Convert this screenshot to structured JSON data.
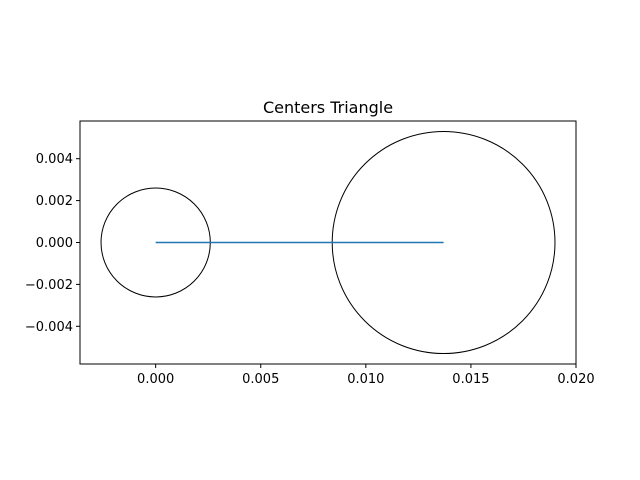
{
  "chart_data": {
    "type": "line",
    "title": "Centers Triangle",
    "xlabel": "",
    "ylabel": "",
    "xlim": [
      -0.0036,
      0.02
    ],
    "ylim": [
      -0.0058,
      0.0058
    ],
    "x_ticks": [
      0.0,
      0.005,
      0.01,
      0.015,
      0.02
    ],
    "x_tick_labels": [
      "0.000",
      "0.005",
      "0.010",
      "0.015",
      "0.020"
    ],
    "y_ticks": [
      -0.004,
      -0.002,
      0.0,
      0.002,
      0.004
    ],
    "y_tick_labels": [
      "−0.004",
      "−0.002",
      "0.000",
      "0.002",
      "0.004"
    ],
    "grid": false,
    "series": [
      {
        "x": [
          0.0,
          0.0137,
          0.0
        ],
        "y": [
          0.0,
          0.0,
          0.0
        ],
        "color": "#1f77b4"
      }
    ],
    "circles": [
      {
        "cx": 0.0,
        "cy": 0.0,
        "r": 0.0026,
        "color": "#000000"
      },
      {
        "cx": 0.0137,
        "cy": 0.0,
        "r": 0.0053,
        "color": "#000000"
      }
    ]
  }
}
